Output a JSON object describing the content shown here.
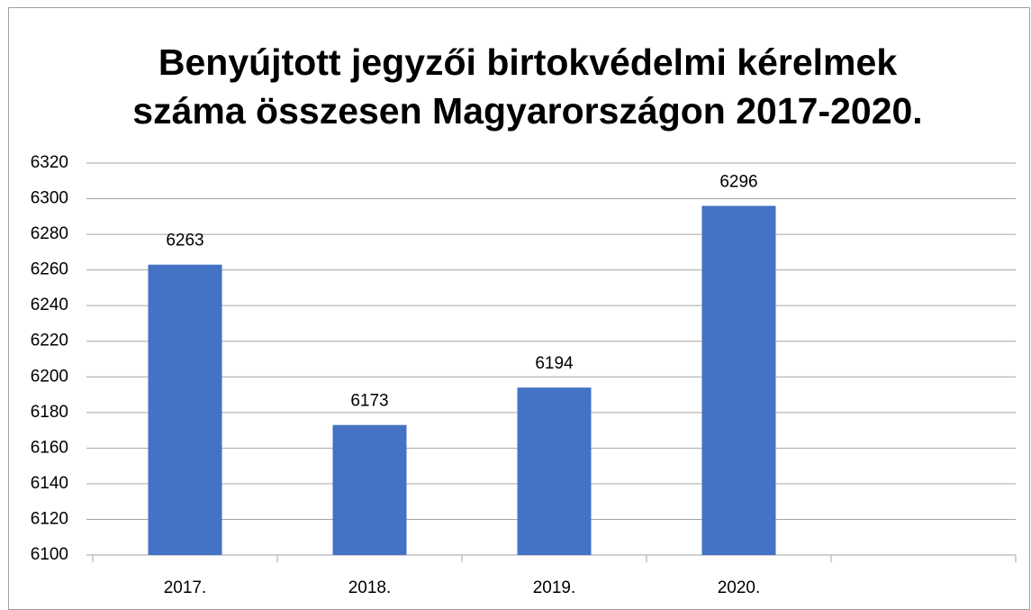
{
  "chart_data": {
    "type": "bar",
    "title": [
      "Benyújtott jegyzői birtokvédelmi kérelmek",
      "száma összesen Magyarországon 2017-2020."
    ],
    "categories": [
      "2017.",
      "2018.",
      "2019.",
      "2020.",
      null
    ],
    "values": [
      6263,
      6173,
      6194,
      6296,
      null
    ],
    "color": "#4472c4",
    "ylim": [
      6100,
      6320
    ],
    "yticks": [
      6100,
      6120,
      6140,
      6160,
      6180,
      6200,
      6220,
      6240,
      6260,
      6280,
      6300,
      6320
    ],
    "grid": true
  }
}
